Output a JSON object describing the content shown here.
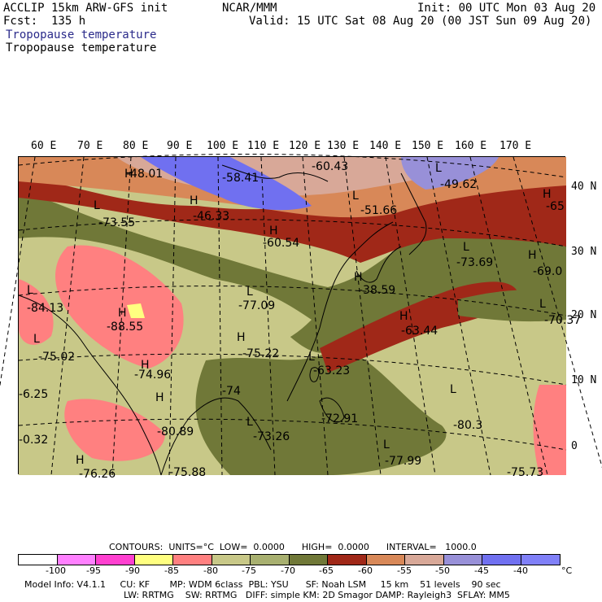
{
  "header": {
    "model": "ACCLIP 15km ARW-GFS init",
    "fcst": "Fcst:  135 h",
    "org": "NCAR/MMM",
    "init": "Init: 00 UTC Mon 03 Aug 20",
    "valid": "Valid: 15 UTC Sat 08 Aug 20 (00 JST Sun 09 Aug 20)",
    "field_title_1": "Tropopause temperature",
    "field_title_2": "Tropopause temperature"
  },
  "axes": {
    "longitudes": [
      "60 E",
      "70 E",
      "80 E",
      "90 E",
      "100 E",
      "110 E",
      "120 E",
      "130 E",
      "140 E",
      "150 E",
      "160 E",
      "170 E"
    ],
    "latitudes": [
      "40 N",
      "30 N",
      "20 N",
      "10 N",
      "0"
    ]
  },
  "map_labels": {
    "highs_lows": [
      "H",
      "L",
      "H",
      "L",
      "H",
      "L",
      "H",
      "L",
      "H",
      "L",
      "H",
      "L",
      "H",
      "L",
      "H",
      "L",
      "H",
      "L",
      "H",
      "L",
      "H",
      "L",
      "H",
      "L"
    ],
    "values": [
      "-48.01",
      "-58.41",
      "-60.43",
      "-49.62",
      "-46.33",
      "-51.66",
      "-65",
      "-73.55",
      "-60.54",
      "-73.69",
      "-69.0",
      "-84.13",
      "-88.55",
      "-77.09",
      "-38.59",
      "-70.37",
      "-63.44",
      "-75.02",
      "-75.22",
      "-63.23",
      "-74.96",
      "-6.25",
      "-74",
      "-72.91",
      "-80.3",
      "-80.89",
      "-73.26",
      "-0.32",
      "-76.26",
      "-75.88",
      "-77.99",
      "-75.73"
    ]
  },
  "contours": {
    "line": "CONTOURS:  UNITS=°C  LOW=  0.0000      HIGH=  0.0000      INTERVAL=   1000.0"
  },
  "colorbar": {
    "colors": [
      "#ffffff",
      "#ff80ff",
      "#ff40d0",
      "#ffff80",
      "#ff8080",
      "#c8c888",
      "#a8b070",
      "#707838",
      "#a02818",
      "#d88858",
      "#d8a898",
      "#9890d8",
      "#7070f0",
      "#8080f8"
    ],
    "ticks": [
      "-100",
      "-95",
      "-90",
      "-85",
      "-80",
      "-75",
      "-70",
      "-65",
      "-60",
      "-55",
      "-50",
      "-45",
      "-40"
    ],
    "unit": "°C"
  },
  "footer": {
    "line1": "Model Info: V4.1.1     CU: KF       MP: WDM 6class  PBL: YSU      SF: Noah LSM     15 km    51 levels    90 sec",
    "line2": "LW: RRTMG    SW: RRTMG   DIFF: simple KM: 2D Smagor DAMP: Rayleigh3  SFLAY: MM5"
  }
}
